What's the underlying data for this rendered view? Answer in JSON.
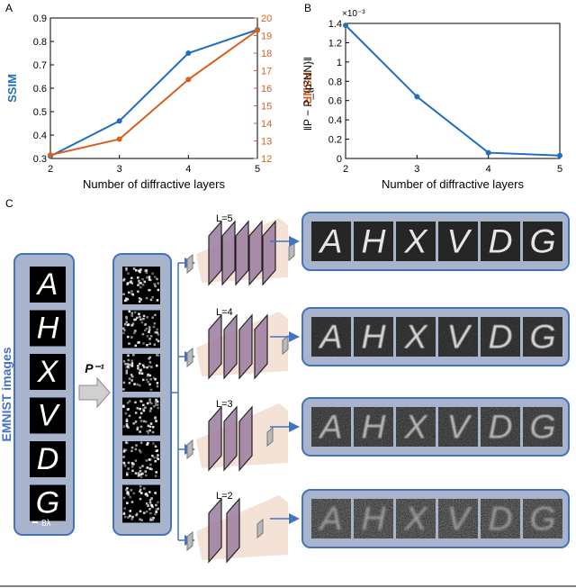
{
  "panels": {
    "a": "A",
    "b": "B",
    "c": "C"
  },
  "chart_data": [
    {
      "type": "line",
      "x": [
        2,
        3,
        4,
        5
      ],
      "xlabel": "Number of diffractive layers",
      "xlim": [
        2,
        5
      ],
      "xticks": [
        "2",
        "3",
        "4",
        "5"
      ],
      "series": [
        {
          "name": "SSIM",
          "axis": "left",
          "color": "#1f6fbf",
          "values": [
            0.31,
            0.46,
            0.75,
            0.85
          ],
          "ylim": [
            0.3,
            0.9
          ],
          "yticks": [
            "0.3",
            "0.4",
            "0.5",
            "0.6",
            "0.7",
            "0.8",
            "0.9"
          ]
        },
        {
          "name": "PSNR",
          "axis": "right",
          "color": "#d95f1e",
          "values": [
            12.2,
            13.1,
            16.5,
            19.3
          ],
          "ylim": [
            12,
            20
          ],
          "yticks": [
            "12",
            "13",
            "14",
            "15",
            "16",
            "17",
            "18",
            "19",
            "20"
          ]
        }
      ],
      "grid": false
    },
    {
      "type": "line",
      "x": [
        2,
        3,
        4,
        5
      ],
      "xlabel": "Number of diffractive layers",
      "ylabel": "‖P − P_{p²NN}‖",
      "exponent": "×10⁻³",
      "xlim": [
        2,
        5
      ],
      "ylim": [
        0,
        1.4
      ],
      "xticks": [
        "2",
        "3",
        "4",
        "5"
      ],
      "yticks": [
        "0",
        "0.2",
        "0.4",
        "0.6",
        "0.8",
        "1",
        "1.2",
        "1.4"
      ],
      "series": [
        {
          "color": "#1f6fbf",
          "values": [
            1.38,
            0.64,
            0.06,
            0.03
          ]
        }
      ],
      "grid": false
    }
  ],
  "diagram": {
    "input_label": "EMNIST images",
    "operator_label": "P⁻¹",
    "scale_label": "8λ",
    "letters": [
      "A",
      "H",
      "X",
      "V",
      "D",
      "G"
    ],
    "layer_labels": [
      "L=5",
      "L=4",
      "L=3",
      "L=2"
    ],
    "layer_counts": [
      5,
      4,
      3,
      2
    ],
    "colors": {
      "box_fill": "#a7b4cc",
      "box_stroke": "#4472c4",
      "arrow": "#4472c4",
      "cone": "#f3ddd0",
      "plate": "#9a7c9f"
    }
  }
}
